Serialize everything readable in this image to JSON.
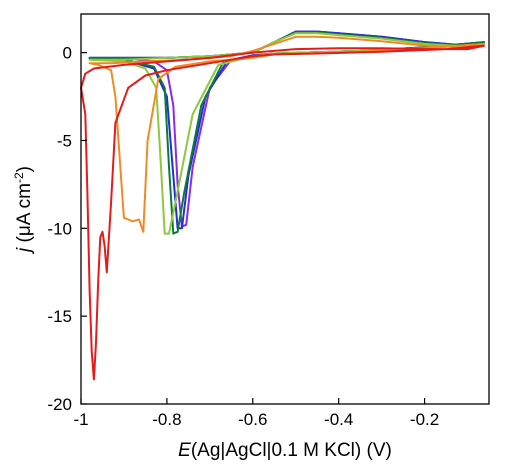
{
  "chart_data": {
    "type": "line",
    "xlabel": {
      "symbol": "E",
      "rest": "(Ag|AgCl|0.1 M KCl)  (V)"
    },
    "ylabel": {
      "symbol": "j",
      "pre": "  (μA cm",
      "sup": "-2",
      "post": ")"
    },
    "xlim": [
      -1.0,
      -0.05
    ],
    "ylim": [
      -20,
      2.2
    ],
    "xticks": [
      -1.0,
      -0.8,
      -0.6,
      -0.4,
      -0.2
    ],
    "xtick_labels": [
      "-1",
      "-0.8",
      "-0.6",
      "-0.4",
      "-0.2"
    ],
    "yticks": [
      0,
      -5,
      -10,
      -15,
      -20
    ],
    "ytick_labels": [
      "0",
      "-5",
      "-10",
      "-15",
      "-20"
    ],
    "grid": false,
    "legend": "none",
    "series": [
      {
        "color": "#8b2be2",
        "x": [
          -0.06,
          -0.2,
          -0.35,
          -0.48,
          -0.55,
          -0.6,
          -0.65,
          -0.7,
          -0.74,
          -0.755,
          -0.765,
          -0.775,
          -0.785,
          -0.8,
          -0.83,
          -0.9,
          -0.98,
          -0.9,
          -0.8,
          -0.7,
          -0.6,
          -0.55,
          -0.5,
          -0.45,
          -0.4,
          -0.3,
          -0.2,
          -0.1,
          -0.06
        ],
        "y": [
          0.6,
          0.3,
          0.1,
          0.0,
          -0.05,
          -0.15,
          -0.4,
          -2.0,
          -6.5,
          -9.8,
          -9.9,
          -7.5,
          -3.0,
          -1.0,
          -0.5,
          -0.3,
          -0.3,
          -0.3,
          -0.3,
          -0.2,
          0.0,
          0.6,
          1.2,
          1.2,
          1.1,
          0.9,
          0.6,
          0.4,
          0.6
        ]
      },
      {
        "color": "#1f2fd6",
        "x": [
          -0.06,
          -0.2,
          -0.35,
          -0.48,
          -0.55,
          -0.6,
          -0.66,
          -0.71,
          -0.75,
          -0.765,
          -0.775,
          -0.785,
          -0.8,
          -0.83,
          -0.9,
          -0.98,
          -0.9,
          -0.8,
          -0.7,
          -0.6,
          -0.55,
          -0.5,
          -0.45,
          -0.4,
          -0.3,
          -0.2,
          -0.1,
          -0.06
        ],
        "y": [
          0.6,
          0.3,
          0.1,
          0.0,
          -0.05,
          -0.15,
          -0.5,
          -2.5,
          -7.0,
          -10.0,
          -10.0,
          -7.0,
          -2.5,
          -0.9,
          -0.4,
          -0.3,
          -0.3,
          -0.3,
          -0.2,
          0.0,
          0.6,
          1.2,
          1.2,
          1.1,
          0.9,
          0.6,
          0.4,
          0.6
        ]
      },
      {
        "color": "#0b7a3b",
        "x": [
          -0.06,
          -0.2,
          -0.35,
          -0.48,
          -0.55,
          -0.6,
          -0.67,
          -0.72,
          -0.76,
          -0.775,
          -0.785,
          -0.795,
          -0.805,
          -0.83,
          -0.9,
          -0.98,
          -0.9,
          -0.8,
          -0.7,
          -0.6,
          -0.55,
          -0.5,
          -0.45,
          -0.4,
          -0.3,
          -0.2,
          -0.1,
          -0.06
        ],
        "y": [
          0.6,
          0.3,
          0.1,
          0.0,
          -0.05,
          -0.2,
          -0.6,
          -3.0,
          -8.0,
          -10.2,
          -10.3,
          -6.5,
          -2.0,
          -0.8,
          -0.4,
          -0.3,
          -0.3,
          -0.3,
          -0.2,
          0.0,
          0.6,
          1.15,
          1.15,
          1.05,
          0.85,
          0.55,
          0.4,
          0.6
        ]
      },
      {
        "color": "#8fc73e",
        "x": [
          -0.06,
          -0.2,
          -0.35,
          -0.48,
          -0.55,
          -0.6,
          -0.68,
          -0.74,
          -0.78,
          -0.795,
          -0.805,
          -0.815,
          -0.825,
          -0.85,
          -0.9,
          -0.98,
          -0.9,
          -0.8,
          -0.7,
          -0.6,
          -0.55,
          -0.5,
          -0.45,
          -0.4,
          -0.3,
          -0.2,
          -0.1,
          -0.06
        ],
        "y": [
          0.5,
          0.25,
          0.1,
          0.0,
          -0.05,
          -0.2,
          -0.7,
          -3.5,
          -8.5,
          -10.3,
          -10.3,
          -6.0,
          -2.0,
          -0.9,
          -0.5,
          -0.4,
          -0.4,
          -0.3,
          -0.2,
          0.0,
          0.6,
          1.1,
          1.1,
          1.0,
          0.8,
          0.5,
          0.35,
          0.5
        ]
      },
      {
        "color": "#f08a24",
        "x": [
          -0.06,
          -0.2,
          -0.35,
          -0.48,
          -0.55,
          -0.6,
          -0.7,
          -0.78,
          -0.82,
          -0.845,
          -0.855,
          -0.865,
          -0.88,
          -0.89,
          -0.9,
          -0.91,
          -0.92,
          -0.93,
          -0.96,
          -0.98,
          -0.93,
          -0.85,
          -0.75,
          -0.65,
          -0.6,
          -0.55,
          -0.5,
          -0.45,
          -0.4,
          -0.3,
          -0.2,
          -0.1,
          -0.06
        ],
        "y": [
          0.5,
          0.25,
          0.05,
          -0.05,
          -0.1,
          -0.3,
          -0.5,
          -0.8,
          -1.5,
          -5.0,
          -10.2,
          -9.5,
          -9.6,
          -9.5,
          -9.4,
          -6.0,
          -2.5,
          -1.0,
          -0.7,
          -0.6,
          -0.6,
          -0.5,
          -0.4,
          -0.2,
          0.1,
          0.5,
          0.9,
          0.9,
          0.85,
          0.65,
          0.4,
          0.3,
          0.5
        ]
      },
      {
        "color": "#e51b1b",
        "x": [
          -0.06,
          -0.15,
          -0.3,
          -0.45,
          -0.55,
          -0.6,
          -0.7,
          -0.8,
          -0.85,
          -0.89,
          -0.92,
          -0.93,
          -0.94,
          -0.945,
          -0.95,
          -0.955,
          -0.96,
          -0.965,
          -0.97,
          -0.975,
          -0.98,
          -0.985,
          -0.99,
          -1.0,
          -0.99,
          -0.97,
          -0.9,
          -0.8,
          -0.7,
          -0.6,
          -0.5,
          -0.4,
          -0.3,
          -0.2,
          -0.1,
          -0.06
        ],
        "y": [
          0.4,
          0.2,
          0.05,
          -0.05,
          -0.1,
          -0.2,
          -0.6,
          -1.0,
          -1.3,
          -2.0,
          -4.0,
          -8.5,
          -12.5,
          -11.0,
          -10.2,
          -10.5,
          -13.0,
          -16.5,
          -18.6,
          -17.0,
          -13.5,
          -8.0,
          -3.5,
          -2.0,
          -1.2,
          -0.9,
          -0.7,
          -0.5,
          -0.3,
          0.0,
          0.2,
          0.25,
          0.25,
          0.2,
          0.2,
          0.4
        ]
      }
    ]
  }
}
